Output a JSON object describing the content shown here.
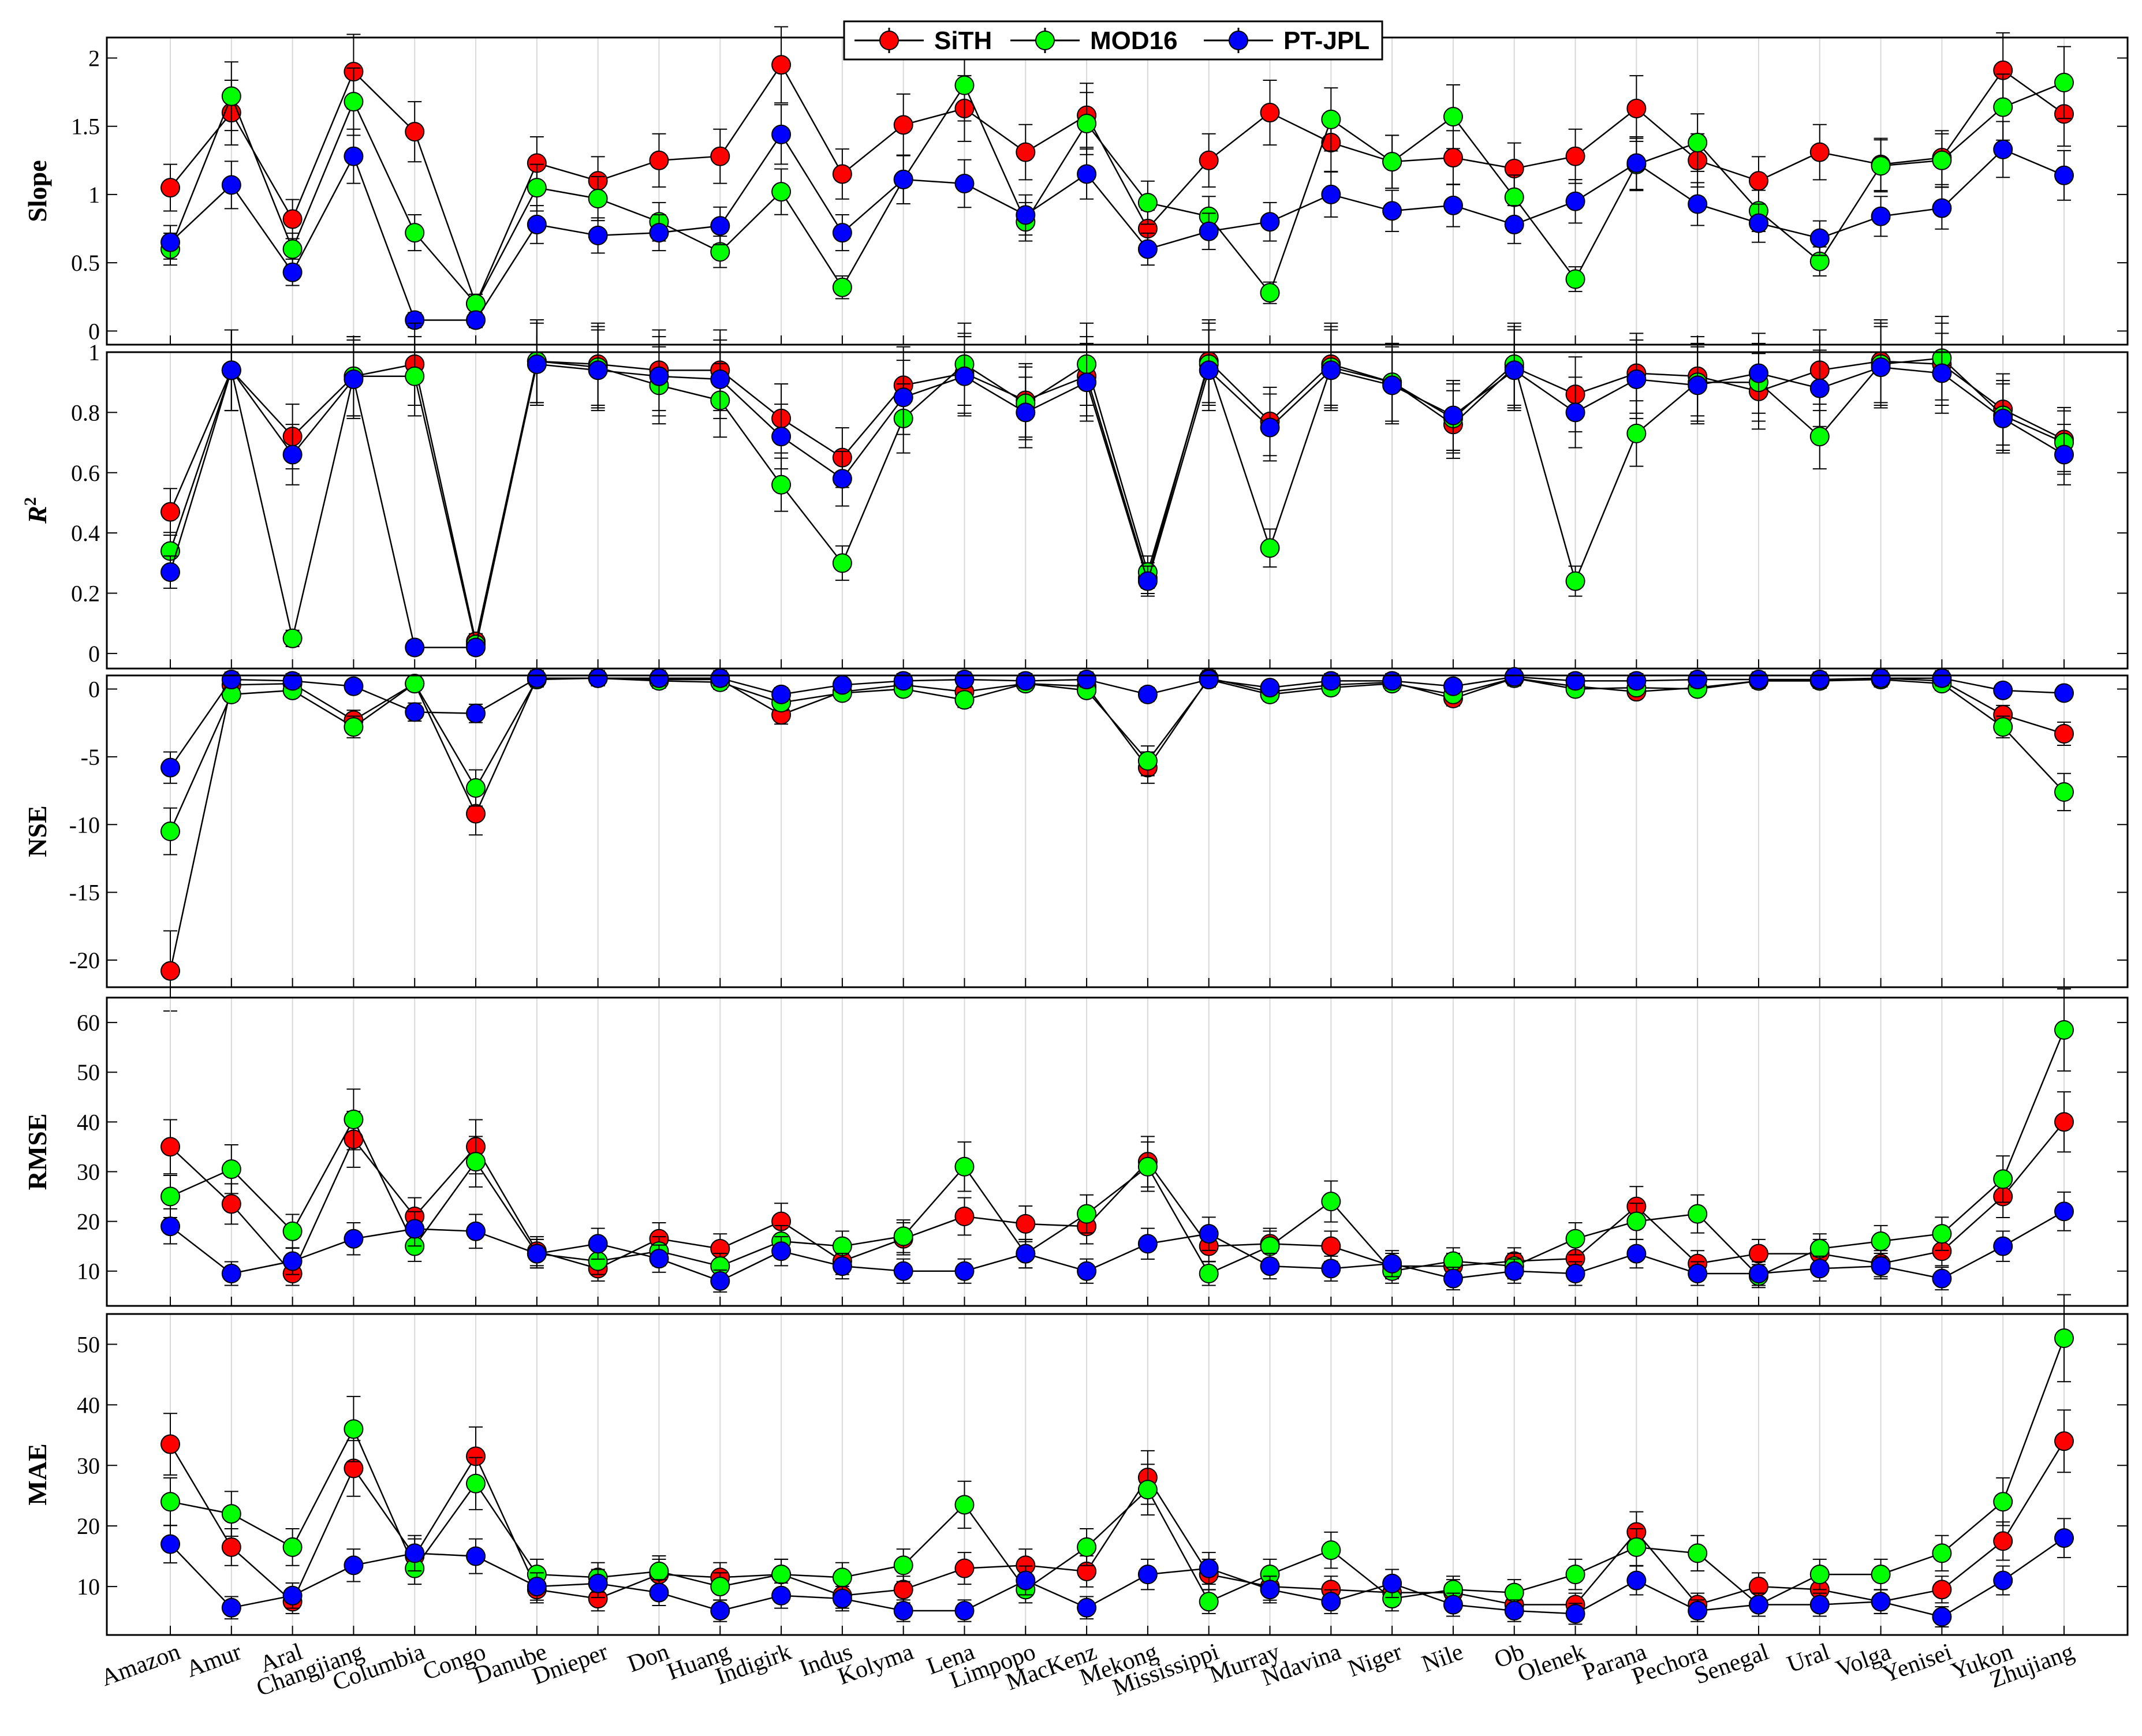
{
  "legend": [
    "SiTH",
    "MOD16",
    "PT-JPL"
  ],
  "colors": {
    "SiTH": "#ff0000",
    "MOD16": "#00ff00",
    "PT-JPL": "#0000ff"
  },
  "chart_data": {
    "type": "line",
    "categories": [
      "Amazon",
      "Amur",
      "Aral",
      "Changjiang",
      "Columbia",
      "Congo",
      "Danube",
      "Dnieper",
      "Don",
      "Huang",
      "Indigirk",
      "Indus",
      "Kolyma",
      "Lena",
      "Limpopo",
      "MacKenz",
      "Mekong",
      "Mississippi",
      "Murray",
      "Ndavina",
      "Niger",
      "Nile",
      "Ob",
      "Olenek",
      "Parana",
      "Pechora",
      "Senegal",
      "Ural",
      "Volga",
      "Yenisei",
      "Yukon",
      "Zhujiang"
    ],
    "panels": [
      {
        "name": "slope",
        "ylabel": "Slope",
        "ylim": [
          -0.1,
          2.15
        ],
        "ticks": [
          0,
          0.5,
          1,
          1.5,
          2
        ],
        "series": [
          {
            "name": "SiTH",
            "values": [
              1.05,
              1.6,
              0.82,
              1.9,
              1.46,
              0.2,
              1.23,
              1.1,
              1.25,
              1.28,
              1.95,
              1.15,
              1.51,
              1.63,
              1.31,
              1.58,
              0.75,
              1.25,
              1.6,
              1.38,
              1.24,
              1.27,
              1.19,
              1.28,
              1.63,
              1.25,
              1.1,
              1.31,
              1.22,
              1.27,
              1.91,
              1.59
            ]
          },
          {
            "name": "MOD16",
            "values": [
              0.6,
              1.72,
              0.6,
              1.68,
              0.72,
              0.2,
              1.05,
              0.97,
              0.8,
              0.58,
              1.02,
              0.32,
              1.11,
              1.8,
              0.8,
              1.52,
              0.94,
              0.84,
              0.28,
              1.55,
              1.24,
              1.57,
              0.98,
              0.38,
              1.22,
              1.38,
              0.88,
              0.51,
              1.21,
              1.25,
              1.64,
              1.82
            ]
          },
          {
            "name": "PT-JPL",
            "values": [
              0.65,
              1.07,
              0.43,
              1.28,
              0.08,
              0.08,
              0.78,
              0.7,
              0.72,
              0.77,
              1.44,
              0.72,
              1.11,
              1.08,
              0.85,
              1.15,
              0.6,
              0.73,
              0.8,
              1.0,
              0.88,
              0.92,
              0.78,
              0.95,
              1.23,
              0.93,
              0.79,
              0.68,
              0.84,
              0.9,
              1.33,
              1.14
            ]
          }
        ]
      },
      {
        "name": "r2",
        "ylabel": "R2",
        "ylim": [
          -0.05,
          1.0
        ],
        "ticks": [
          0,
          0.2,
          0.4,
          0.6,
          0.8,
          1
        ],
        "series": [
          {
            "name": "SiTH",
            "values": [
              0.47,
              0.94,
              0.72,
              0.92,
              0.96,
              0.04,
              0.97,
              0.96,
              0.94,
              0.94,
              0.78,
              0.65,
              0.89,
              0.93,
              0.84,
              0.92,
              0.25,
              0.97,
              0.77,
              0.96,
              0.9,
              0.76,
              0.95,
              0.86,
              0.93,
              0.92,
              0.87,
              0.94,
              0.97,
              0.96,
              0.81,
              0.71
            ]
          },
          {
            "name": "MOD16",
            "values": [
              0.34,
              0.94,
              0.05,
              0.92,
              0.92,
              0.03,
              0.97,
              0.95,
              0.89,
              0.84,
              0.56,
              0.3,
              0.78,
              0.96,
              0.83,
              0.96,
              0.27,
              0.96,
              0.35,
              0.95,
              0.9,
              0.78,
              0.96,
              0.24,
              0.73,
              0.9,
              0.9,
              0.72,
              0.96,
              0.98,
              0.79,
              0.7
            ]
          },
          {
            "name": "PT-JPL",
            "values": [
              0.27,
              0.94,
              0.66,
              0.91,
              0.02,
              0.02,
              0.96,
              0.94,
              0.92,
              0.91,
              0.72,
              0.58,
              0.85,
              0.92,
              0.8,
              0.9,
              0.24,
              0.94,
              0.75,
              0.94,
              0.89,
              0.79,
              0.94,
              0.8,
              0.91,
              0.89,
              0.93,
              0.88,
              0.95,
              0.93,
              0.78,
              0.66
            ]
          }
        ]
      },
      {
        "name": "nse",
        "ylabel": "NSE",
        "ylim": [
          -22,
          1
        ],
        "ticks": [
          0,
          -5,
          -10,
          -15,
          -20
        ],
        "series": [
          {
            "name": "SiTH",
            "values": [
              -20.8,
              0.3,
              0.4,
              -2.3,
              0.4,
              -9.2,
              0.8,
              0.8,
              0.7,
              0.7,
              -1.9,
              -0.2,
              0.3,
              -0.2,
              0.4,
              0.2,
              -5.8,
              0.8,
              -0.2,
              0.3,
              0.5,
              -0.7,
              0.8,
              0.2,
              -0.2,
              0.1,
              0.6,
              0.6,
              0.8,
              0.6,
              -1.9,
              -3.3
            ]
          },
          {
            "name": "MOD16",
            "values": [
              -10.5,
              -0.4,
              -0.1,
              -2.8,
              0.4,
              -7.3,
              0.7,
              0.8,
              0.6,
              0.5,
              -1.0,
              -0.3,
              0.0,
              -0.8,
              0.4,
              -0.1,
              -5.3,
              0.7,
              -0.4,
              0.1,
              0.4,
              -0.4,
              0.8,
              0.0,
              0.1,
              0.0,
              0.6,
              0.6,
              0.7,
              0.4,
              -2.8,
              -7.6
            ]
          },
          {
            "name": "PT-JPL",
            "values": [
              -5.8,
              0.7,
              0.6,
              0.2,
              -1.7,
              -1.8,
              0.8,
              0.8,
              0.8,
              0.8,
              -0.4,
              0.3,
              0.6,
              0.7,
              0.6,
              0.7,
              -0.4,
              0.7,
              0.1,
              0.6,
              0.6,
              0.2,
              0.9,
              0.6,
              0.6,
              0.7,
              0.7,
              0.7,
              0.8,
              0.8,
              -0.1,
              -0.3
            ]
          }
        ]
      },
      {
        "name": "rmse",
        "ylabel": "RMSE",
        "ylim": [
          3,
          65
        ],
        "ticks": [
          10,
          20,
          30,
          40,
          50,
          60
        ],
        "series": [
          {
            "name": "SiTH",
            "values": [
              35,
              23.5,
              9.5,
              36.5,
              21,
              35,
              14,
              10.5,
              16.5,
              14.5,
              20,
              12,
              16.5,
              21,
              19.5,
              19,
              32,
              15,
              15.5,
              15,
              11,
              11,
              12,
              12.5,
              23,
              11.5,
              13.5,
              13.5,
              11.5,
              14,
              25,
              40
            ]
          },
          {
            "name": "MOD16",
            "values": [
              25,
              30.5,
              18,
              40.5,
              15,
              32,
              13.5,
              12,
              14,
              11,
              16,
              15,
              17,
              31,
              13.5,
              21.5,
              31,
              9.5,
              15,
              24,
              10,
              12,
              11,
              16.5,
              20,
              21.5,
              9,
              14.5,
              16,
              17.5,
              28.5,
              58.5
            ]
          },
          {
            "name": "PT-JPL",
            "values": [
              19,
              9.5,
              12,
              16.5,
              18.5,
              18,
              13.5,
              15.5,
              12.5,
              8,
              14,
              11,
              10,
              10,
              13.5,
              10,
              15.5,
              17.5,
              11,
              10.5,
              11.5,
              8.5,
              10,
              9.5,
              13.5,
              9.5,
              9.5,
              10.5,
              11,
              8.5,
              15,
              22
            ]
          }
        ]
      },
      {
        "name": "mae",
        "ylabel": "MAE",
        "ylim": [
          2,
          55
        ],
        "ticks": [
          10,
          20,
          30,
          40,
          50
        ],
        "series": [
          {
            "name": "SiTH",
            "values": [
              33.5,
              16.5,
              7.5,
              29.5,
              15,
              31.5,
              9.5,
              8,
              12,
              11.5,
              12,
              8.5,
              9.5,
              13,
              13.5,
              12.5,
              28,
              12,
              10,
              9.5,
              9,
              9,
              7,
              7,
              19,
              7,
              10,
              9.5,
              7.5,
              9.5,
              17.5,
              34
            ]
          },
          {
            "name": "MOD16",
            "values": [
              24,
              22,
              16.5,
              36,
              13,
              27,
              12,
              11.5,
              12.5,
              10,
              12,
              11.5,
              13.5,
              23.5,
              9.5,
              16.5,
              26,
              7.5,
              12,
              16,
              8,
              9.5,
              9,
              12,
              16.5,
              15.5,
              7,
              12,
              12,
              15.5,
              24,
              51
            ]
          },
          {
            "name": "PT-JPL",
            "values": [
              17,
              6.5,
              8.5,
              13.5,
              15.5,
              15,
              10,
              10.5,
              9,
              6,
              8.5,
              8,
              6,
              6,
              11,
              6.5,
              12,
              13,
              9.5,
              7.5,
              10.5,
              7,
              6,
              5.5,
              11,
              6,
              7,
              7,
              7.5,
              5,
              11,
              18
            ]
          }
        ]
      }
    ]
  }
}
